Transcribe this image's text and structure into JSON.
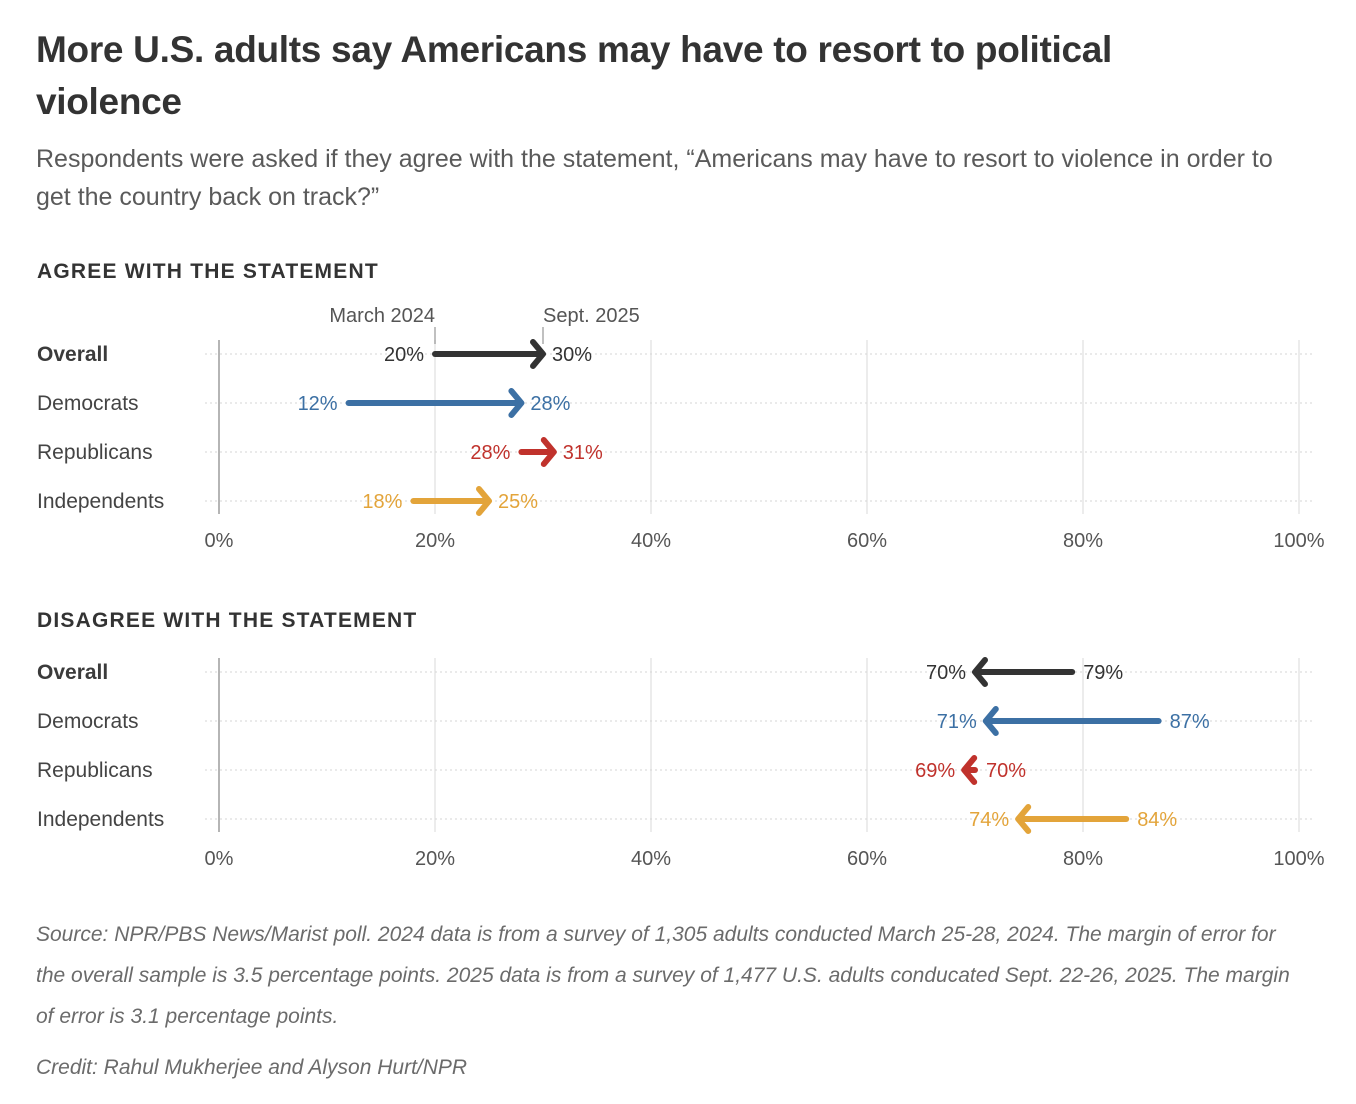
{
  "header": {
    "title": "More U.S. adults say Americans may have to resort to political violence",
    "subtitle": "Respondents were asked if they agree with the statement, “Americans may have to resort to violence in order to get the country back on track?”"
  },
  "colors": {
    "Overall": "#333333",
    "Democrats": "#3c70a4",
    "Republicans": "#c0322c",
    "Independents": "#e3a43a",
    "axis": "#b5b5b5",
    "grid": "#ececec"
  },
  "chart_data": [
    {
      "type": "dumbbell-arrow",
      "title": "AGREE WITH THE STATEMENT",
      "from_label": "March 2024",
      "to_label": "Sept. 2025",
      "categories": [
        "Overall",
        "Democrats",
        "Republicans",
        "Independents"
      ],
      "series": [
        {
          "name": "March 2024",
          "values": [
            20,
            12,
            28,
            18
          ]
        },
        {
          "name": "Sept. 2025",
          "values": [
            30,
            28,
            31,
            25
          ]
        }
      ],
      "xlim": [
        0,
        100
      ],
      "xticks": [
        0,
        20,
        40,
        60,
        80,
        100
      ],
      "xtick_labels": [
        "0%",
        "20%",
        "40%",
        "60%",
        "80%",
        "100%"
      ],
      "grid": true,
      "unit": "%"
    },
    {
      "type": "dumbbell-arrow",
      "title": "DISAGREE WITH THE STATEMENT",
      "from_label": "March 2024",
      "to_label": "Sept. 2025",
      "categories": [
        "Overall",
        "Democrats",
        "Republicans",
        "Independents"
      ],
      "series": [
        {
          "name": "March 2024",
          "values": [
            79,
            87,
            70,
            84
          ]
        },
        {
          "name": "Sept. 2025",
          "values": [
            70,
            71,
            69,
            74
          ]
        }
      ],
      "xlim": [
        0,
        100
      ],
      "xticks": [
        0,
        20,
        40,
        60,
        80,
        100
      ],
      "xtick_labels": [
        "0%",
        "20%",
        "40%",
        "60%",
        "80%",
        "100%"
      ],
      "grid": true,
      "unit": "%"
    }
  ],
  "footer": {
    "source": "Source: NPR/PBS News/Marist poll. 2024 data is from a survey of 1,305 adults conducted March 25-28, 2024. The margin of error for the overall sample is 3.5 percentage points. 2025 data is from a survey of 1,477 U.S. adults conducated Sept. 22-26, 2025. The margin of error is 3.1 percentage points.",
    "credit": "Credit: Rahul Mukherjee and Alyson Hurt/NPR"
  }
}
